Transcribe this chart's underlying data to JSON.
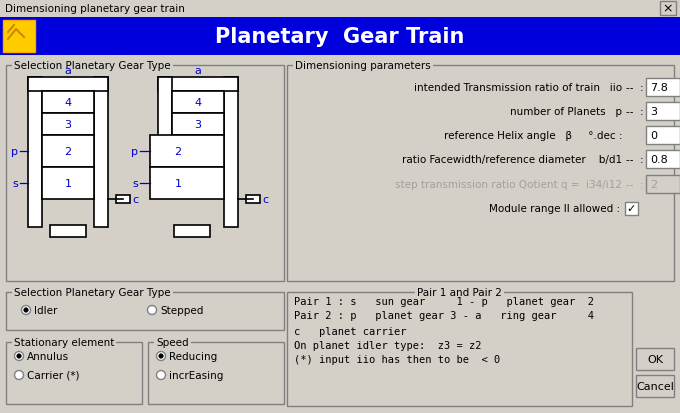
{
  "title_bar": "Dimensioning planetary gear train",
  "title_bar_bg": "#d4d0c8",
  "header_bg": "#0000dd",
  "header_text": "Planetary  Gear Train",
  "header_fg": "#ffffff",
  "dialog_bg": "#d4d0c8",
  "black": "#000000",
  "white": "#ffffff",
  "blue_text": "#0000cc",
  "gray_border": "#808080",
  "disabled_text": "#a0a0a0",
  "section1_title": "Selection Planetary Gear Type",
  "section2_title": "Dimensioning parameters",
  "section3_title": "Selection Planetary Gear Type",
  "section4_title": "Pair 1 and Pair 2",
  "section5_title": "Stationary element",
  "section6_title": "Speed",
  "params": [
    {
      "label": "intended Transmission ratio of train   iio",
      "sym": "--  :",
      "value": "7.8",
      "enabled": true
    },
    {
      "label": "number of Planets   p",
      "sym": "--  :",
      "value": "3",
      "enabled": true
    },
    {
      "label": "reference Helix angle   β     °.dec :",
      "sym": "",
      "value": "0",
      "enabled": true
    },
    {
      "label": "ratio Facewidth/reference diameter    b/d1",
      "sym": "--  :",
      "value": "0.8",
      "enabled": true
    },
    {
      "label": "step transmission ratio Qotient q =  i34/i12",
      "sym": "--  :",
      "value": "2",
      "enabled": false
    }
  ],
  "module_range_label": "Module range II allowed :",
  "pair_lines": [
    "Pair 1 : s   sun gear     1 - p   planet gear  2",
    "Pair 2 : p   planet gear 3 - a   ring gear     4",
    "c   planet carrier",
    "On planet idler type:  z3 = z2",
    "(*) input iio has then to be  < 0"
  ],
  "radio_gear": [
    "Idler",
    "Stepped"
  ],
  "radio_stat": [
    "Annulus",
    "Carrier (*)"
  ],
  "radio_speed": [
    "Reducing",
    "incrEasing"
  ],
  "btn_ok": "OK",
  "btn_cancel": "Cancel"
}
